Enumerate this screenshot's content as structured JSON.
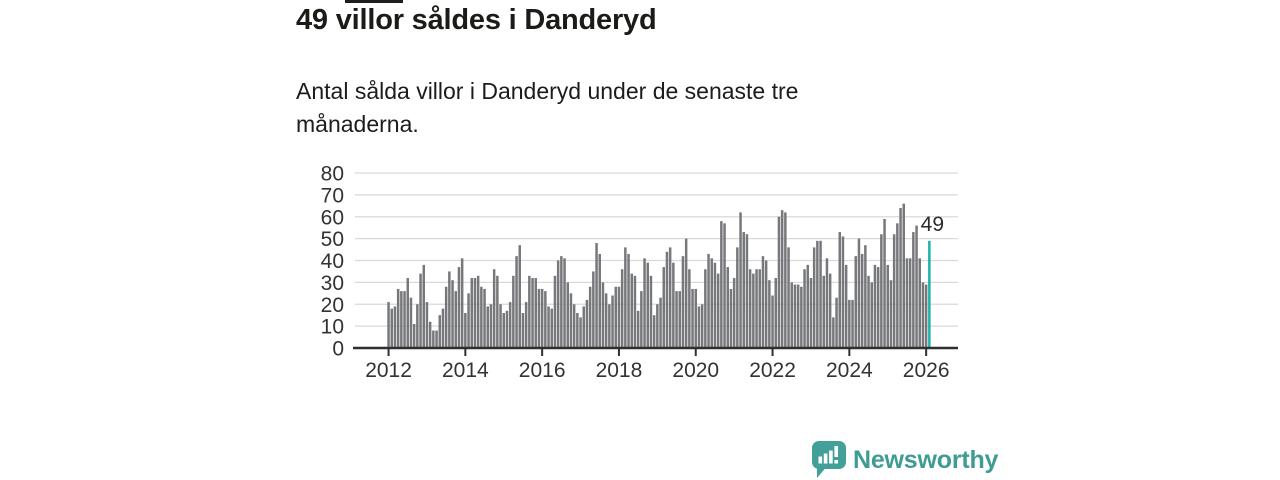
{
  "header": {
    "title": "49 villor såldes i Danderyd",
    "subtitle": "Antal sålda villor i Danderyd under de senaste tre månaderna."
  },
  "footer": {
    "brand": "Newsworthy"
  },
  "chart_data": {
    "type": "bar",
    "title": "49 villor såldes i Danderyd",
    "xlabel": "",
    "ylabel": "",
    "x_start": "2012-01",
    "x_freq": "monthly",
    "x_end": "2026-02",
    "ylim": [
      0,
      80
    ],
    "yticks": [
      0,
      10,
      20,
      30,
      40,
      50,
      60,
      70,
      80
    ],
    "xticks": [
      "2012",
      "2014",
      "2016",
      "2018",
      "2020",
      "2022",
      "2024",
      "2026"
    ],
    "grid": true,
    "values": [
      21,
      18,
      19,
      27,
      26,
      26,
      32,
      23,
      11,
      20,
      34,
      38,
      21,
      12,
      8,
      8,
      15,
      18,
      28,
      35,
      31,
      26,
      37,
      41,
      16,
      25,
      32,
      32,
      33,
      28,
      27,
      19,
      20,
      36,
      33,
      20,
      16,
      17,
      21,
      33,
      42,
      47,
      16,
      21,
      33,
      32,
      32,
      27,
      27,
      26,
      19,
      18,
      33,
      40,
      42,
      41,
      30,
      25,
      20,
      16,
      14,
      19,
      22,
      28,
      35,
      48,
      43,
      30,
      25,
      20,
      24,
      28,
      28,
      36,
      46,
      43,
      34,
      33,
      17,
      26,
      41,
      39,
      33,
      15,
      20,
      23,
      37,
      44,
      46,
      39,
      26,
      26,
      42,
      50,
      36,
      27,
      27,
      19,
      20,
      36,
      43,
      41,
      39,
      34,
      58,
      57,
      37,
      27,
      32,
      46,
      62,
      53,
      52,
      36,
      34,
      36,
      36,
      42,
      40,
      31,
      24,
      32,
      60,
      63,
      62,
      46,
      30,
      29,
      29,
      28,
      36,
      38,
      32,
      46,
      49,
      49,
      33,
      41,
      34,
      14,
      23,
      53,
      51,
      38,
      22,
      22,
      42,
      50,
      43,
      47,
      33,
      30,
      38,
      37,
      52,
      59,
      38,
      31,
      52,
      57,
      64,
      66,
      41,
      41,
      53,
      56,
      41,
      30,
      29,
      49
    ],
    "highlight": {
      "index_from_end": 1,
      "value": 49,
      "color": "#1cb2a8"
    },
    "annotation": {
      "label": "49"
    },
    "colors": {
      "bar": "#77787b",
      "highlight": "#1cb2a8",
      "gridline": "#d9d9d9",
      "axis": "#2f2f2f",
      "tick_label": "#333333",
      "annotation_text": "#2b2b2b"
    },
    "legend": null
  }
}
